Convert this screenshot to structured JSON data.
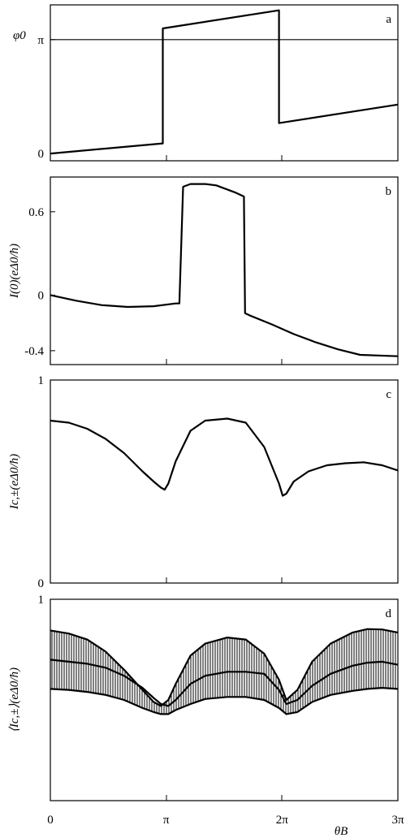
{
  "chart_data": [
    {
      "panel": "a",
      "type": "line",
      "ylabel": "φ0",
      "yticks": [
        {
          "v": 0,
          "label": "0"
        },
        {
          "v": 3.1416,
          "label": "π"
        }
      ],
      "ylim": [
        -0.2,
        4.1
      ],
      "xlim": [
        0,
        9.4248
      ],
      "hline": 3.1416,
      "series": [
        {
          "x": [
            0,
            3.05,
            3.05,
            6.2,
            6.2,
            9.42
          ],
          "y": [
            0,
            0.28,
            3.45,
            3.95,
            0.84,
            1.35
          ]
        }
      ]
    },
    {
      "panel": "b",
      "type": "line",
      "ylabel": "I(0)(eΔ0/ħ)",
      "yticks": [
        {
          "v": 0.6,
          "label": "0.6"
        },
        {
          "v": 0,
          "label": "0"
        },
        {
          "v": -0.4,
          "label": "-0.4"
        }
      ],
      "ylim": [
        -0.5,
        0.85
      ],
      "xlim": [
        0,
        9.4248
      ],
      "series": [
        {
          "x": [
            0,
            0.7,
            1.4,
            2.1,
            2.8,
            3.4,
            3.5,
            3.6,
            3.8,
            4.2,
            4.5,
            5.0,
            5.25,
            5.28,
            5.4,
            6.0,
            6.6,
            7.2,
            7.8,
            8.4,
            9.42
          ],
          "y": [
            0,
            -0.04,
            -0.072,
            -0.085,
            -0.08,
            -0.06,
            -0.06,
            0.78,
            0.8,
            0.8,
            0.79,
            0.74,
            0.71,
            -0.13,
            -0.145,
            -0.21,
            -0.28,
            -0.34,
            -0.39,
            -0.43,
            -0.44
          ]
        }
      ]
    },
    {
      "panel": "c",
      "type": "line",
      "ylabel": "Ic,±(eΔ0/ħ)",
      "yticks": [
        {
          "v": 1,
          "label": "1"
        },
        {
          "v": 0,
          "label": "0"
        }
      ],
      "ylim": [
        0,
        1
      ],
      "xlim": [
        0,
        9.4248
      ],
      "series": [
        {
          "x": [
            0,
            0.5,
            1.0,
            1.5,
            2.0,
            2.5,
            2.8,
            3.0,
            3.1,
            3.2,
            3.4,
            3.8,
            4.2,
            4.8,
            5.3,
            5.8,
            6.2,
            6.3,
            6.4,
            6.6,
            7.0,
            7.5,
            8.0,
            8.5,
            9.0,
            9.42
          ],
          "y": [
            0.8,
            0.79,
            0.76,
            0.71,
            0.64,
            0.55,
            0.5,
            0.47,
            0.46,
            0.49,
            0.6,
            0.75,
            0.8,
            0.81,
            0.79,
            0.67,
            0.49,
            0.43,
            0.44,
            0.5,
            0.55,
            0.58,
            0.59,
            0.595,
            0.58,
            0.555
          ]
        }
      ]
    },
    {
      "panel": "d",
      "type": "line",
      "ylabel": "⟨Ic,±⟩(eΔ0/ħ)",
      "yticks": [
        {
          "v": 1,
          "label": "1"
        }
      ],
      "ylim": [
        0,
        1
      ],
      "xlim": [
        0,
        9.4248
      ],
      "xticks": [
        {
          "v": 0,
          "label": "0"
        },
        {
          "v": 3.1416,
          "label": "π"
        },
        {
          "v": 6.2832,
          "label": "2π"
        },
        {
          "v": 9.4248,
          "label": "3π"
        }
      ],
      "xlabel": "θB",
      "series": [
        {
          "x": [
            0,
            0.5,
            1.0,
            1.5,
            2.0,
            2.5,
            2.8,
            3.0,
            3.2,
            3.4,
            3.8,
            4.2,
            4.8,
            5.3,
            5.8,
            6.2,
            6.4,
            6.7,
            7.1,
            7.6,
            8.2,
            8.6,
            9.0,
            9.42
          ],
          "y": [
            0.7,
            0.69,
            0.68,
            0.66,
            0.62,
            0.56,
            0.51,
            0.48,
            0.47,
            0.5,
            0.58,
            0.62,
            0.64,
            0.64,
            0.63,
            0.55,
            0.48,
            0.5,
            0.57,
            0.63,
            0.67,
            0.685,
            0.69,
            0.675
          ]
        },
        {
          "x": [
            0,
            0.5,
            1.0,
            1.5,
            2.0,
            2.5,
            2.8,
            3.0,
            3.2,
            3.4,
            3.8,
            4.2,
            4.8,
            5.3,
            5.8,
            6.2,
            6.4,
            6.7,
            7.1,
            7.6,
            8.2,
            8.6,
            9.0,
            9.42
          ],
          "y": [
            0.845,
            0.83,
            0.8,
            0.74,
            0.65,
            0.55,
            0.49,
            0.47,
            0.5,
            0.58,
            0.72,
            0.78,
            0.81,
            0.8,
            0.73,
            0.6,
            0.5,
            0.55,
            0.69,
            0.78,
            0.835,
            0.852,
            0.85,
            0.835
          ]
        },
        {
          "x": [
            0,
            0.5,
            1.0,
            1.5,
            2.0,
            2.5,
            2.8,
            3.0,
            3.2,
            3.4,
            3.8,
            4.2,
            4.8,
            5.3,
            5.8,
            6.2,
            6.4,
            6.7,
            7.1,
            7.6,
            8.2,
            8.6,
            9.0,
            9.42
          ],
          "y": [
            0.555,
            0.55,
            0.54,
            0.525,
            0.5,
            0.46,
            0.44,
            0.43,
            0.43,
            0.45,
            0.48,
            0.505,
            0.515,
            0.515,
            0.5,
            0.46,
            0.43,
            0.44,
            0.49,
            0.525,
            0.545,
            0.555,
            0.56,
            0.555
          ]
        }
      ]
    }
  ]
}
